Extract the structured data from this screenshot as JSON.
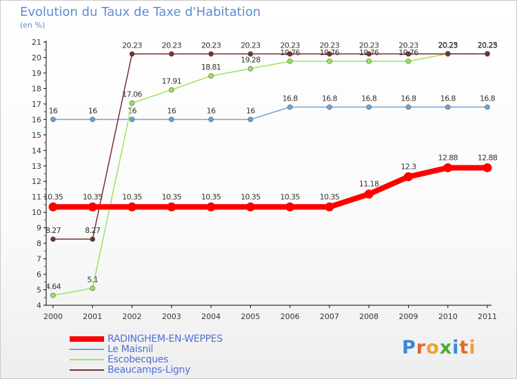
{
  "title": "Evolution du Taux de Taxe d'Habitation",
  "unit_label": "(en %)",
  "brand": {
    "letters": [
      "P",
      "r",
      "o",
      "x",
      "i",
      "t",
      "i"
    ],
    "colors": [
      "#3a86d6",
      "#e4662c",
      "#f0a12d",
      "#4ea93b",
      "#3a86d6",
      "#e4662c",
      "#f0a12d"
    ]
  },
  "chart_data": {
    "type": "line",
    "title": "Evolution du Taux de Taxe d'Habitation",
    "ylabel": "(en %)",
    "xlabel": "",
    "x": [
      "2000",
      "2001",
      "2002",
      "2003",
      "2004",
      "2005",
      "2006",
      "2007",
      "2008",
      "2009",
      "2010",
      "2011"
    ],
    "ylim": [
      4,
      21
    ],
    "yticks": [
      "4",
      "5",
      "6",
      "7",
      "8",
      "9",
      "10",
      "11",
      "12",
      "13",
      "14",
      "15",
      "16",
      "17",
      "18",
      "19",
      "20",
      "21"
    ],
    "grid": false,
    "legend_position": "bottom-left",
    "series": [
      {
        "name": "RADINGHEM-EN-WEPPES",
        "color": "#ff0000",
        "values": [
          10.35,
          10.35,
          10.35,
          10.35,
          10.35,
          10.35,
          10.35,
          10.35,
          11.18,
          12.3,
          12.88,
          12.88
        ],
        "labels": [
          "10.35",
          "10.35",
          "10.35",
          "10.35",
          "10.35",
          "10.35",
          "10.35",
          "10.35",
          "11.18",
          "12.3",
          "12.88",
          "12.88"
        ]
      },
      {
        "name": "Le Maisnil",
        "color": "#6ea3d8",
        "values": [
          16,
          16,
          16,
          16,
          16,
          16,
          16.8,
          16.8,
          16.8,
          16.8,
          16.8,
          16.8
        ],
        "labels": [
          "16",
          "16",
          "16",
          "16",
          "16",
          "16",
          "16.8",
          "16.8",
          "16.8",
          "16.8",
          "16.8",
          "16.8"
        ]
      },
      {
        "name": "Escobecques",
        "color": "#9de25b",
        "values": [
          4.64,
          5.1,
          17.06,
          17.91,
          18.81,
          19.28,
          19.76,
          19.76,
          19.76,
          19.76,
          20.25,
          20.25
        ],
        "labels": [
          "4.64",
          "5.1",
          "17.06",
          "17.91",
          "18.81",
          "19.28",
          "19.76",
          "19.76",
          "19.76",
          "19.76",
          "20.25",
          "20.25"
        ]
      },
      {
        "name": "Beaucamps-Ligny",
        "color": "#7a2f2f",
        "values": [
          8.27,
          8.27,
          20.23,
          20.23,
          20.23,
          20.23,
          20.23,
          20.23,
          20.23,
          20.23,
          20.23,
          20.23
        ],
        "labels": [
          "8.27",
          "8.27",
          "20.23",
          "20.23",
          "20.23",
          "20.23",
          "20.23",
          "20.23",
          "20.23",
          "20.23",
          "20.23",
          "20.23"
        ]
      }
    ]
  }
}
